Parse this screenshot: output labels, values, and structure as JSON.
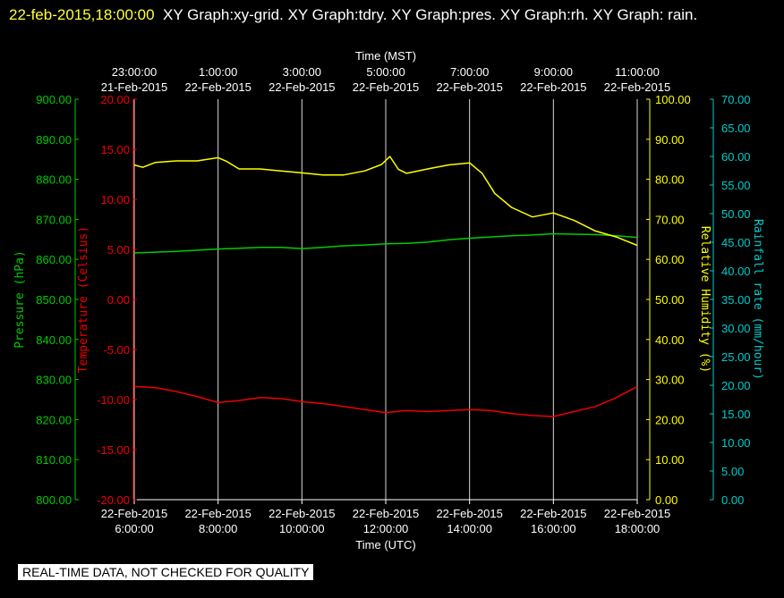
{
  "header": {
    "timestamp": "22-feb-2015,18:00:00",
    "title": "XY Graph:xy-grid.  XY Graph:tdry.  XY Graph:pres.  XY Graph:rh.  XY Graph: rain."
  },
  "footer_note": "REAL-TIME DATA, NOT CHECKED FOR QUALITY",
  "colors": {
    "background": "#000000",
    "grid": "#ffffff",
    "temperature": "#ee0000",
    "pressure": "#00cc00",
    "humidity": "#ffff00",
    "rain": "#00cccc",
    "axis_text": "#ffffff"
  },
  "chart_data": {
    "type": "line",
    "top_axis": {
      "label": "Time (MST)",
      "ticks": [
        {
          "time": "23:00:00",
          "date": "21-Feb-2015"
        },
        {
          "time": "1:00:00",
          "date": "22-Feb-2015"
        },
        {
          "time": "3:00:00",
          "date": "22-Feb-2015"
        },
        {
          "time": "5:00:00",
          "date": "22-Feb-2015"
        },
        {
          "time": "7:00:00",
          "date": "22-Feb-2015"
        },
        {
          "time": "9:00:00",
          "date": "22-Feb-2015"
        },
        {
          "time": "11:00:00",
          "date": "22-Feb-2015"
        }
      ]
    },
    "bottom_axis": {
      "label": "Time (UTC)",
      "range_hours": [
        6,
        18
      ],
      "ticks": [
        {
          "hour": 6,
          "date": "22-Feb-2015",
          "time": "6:00:00"
        },
        {
          "hour": 8,
          "date": "22-Feb-2015",
          "time": "8:00:00"
        },
        {
          "hour": 10,
          "date": "22-Feb-2015",
          "time": "10:00:00"
        },
        {
          "hour": 12,
          "date": "22-Feb-2015",
          "time": "12:00:00"
        },
        {
          "hour": 14,
          "date": "22-Feb-2015",
          "time": "14:00:00"
        },
        {
          "hour": 16,
          "date": "22-Feb-2015",
          "time": "16:00:00"
        },
        {
          "hour": 18,
          "date": "22-Feb-2015",
          "time": "18:00:00"
        }
      ]
    },
    "axes": {
      "pressure": {
        "label": "Pressure (hPa)",
        "unit": "hPa",
        "ylim": [
          800,
          900
        ],
        "ticks": [
          "800.00",
          "810.00",
          "820.00",
          "830.00",
          "840.00",
          "850.00",
          "860.00",
          "870.00",
          "880.00",
          "890.00",
          "900.00"
        ]
      },
      "temperature": {
        "label": "Temperature (Celsius)",
        "unit": "Celsius",
        "ylim": [
          -20,
          20
        ],
        "ticks": [
          "-20.00",
          "-15.00",
          "-10.00",
          "-5.00",
          "0.00",
          "5.00",
          "10.00",
          "15.00",
          "20.00"
        ]
      },
      "humidity": {
        "label": "Relative Humidity (%)",
        "unit": "%",
        "ylim": [
          0,
          100
        ],
        "ticks": [
          "0.00",
          "10.00",
          "20.00",
          "30.00",
          "40.00",
          "50.00",
          "60.00",
          "70.00",
          "80.00",
          "90.00",
          "100.00"
        ]
      },
      "rain": {
        "label": "Rainfall rate (mm/hour)",
        "unit": "mm/hour",
        "ylim": [
          0,
          70
        ],
        "ticks": [
          "0.00",
          "5.00",
          "10.00",
          "15.00",
          "20.00",
          "25.00",
          "30.00",
          "35.00",
          "40.00",
          "45.00",
          "50.00",
          "55.00",
          "60.00",
          "65.00",
          "70.00"
        ]
      }
    },
    "grid": true,
    "series": [
      {
        "name": "tdry",
        "axis": "temperature",
        "x": [
          6,
          6.5,
          7,
          7.5,
          8,
          8.5,
          9,
          9.5,
          10,
          10.5,
          11,
          11.5,
          12,
          12.5,
          13,
          13.5,
          14,
          14.5,
          15,
          15.5,
          16,
          16.5,
          17,
          17.5,
          18
        ],
        "y": [
          -8.7,
          -8.8,
          -9.2,
          -9.7,
          -10.3,
          -10.1,
          -9.8,
          -9.9,
          -10.2,
          -10.4,
          -10.7,
          -11.0,
          -11.3,
          -11.1,
          -11.2,
          -11.1,
          -11.0,
          -11.1,
          -11.4,
          -11.6,
          -11.7,
          -11.2,
          -10.7,
          -9.8,
          -8.7
        ]
      },
      {
        "name": "pres",
        "axis": "pressure",
        "x": [
          6,
          6.5,
          7,
          7.5,
          8,
          8.5,
          9,
          9.5,
          10,
          10.5,
          11,
          11.5,
          12,
          12.5,
          13,
          13.5,
          14,
          14.5,
          15,
          15.5,
          16,
          16.5,
          17,
          17.5,
          18
        ],
        "y": [
          861.6,
          861.8,
          862.0,
          862.3,
          862.6,
          862.8,
          863.0,
          863.0,
          862.7,
          863.0,
          863.4,
          863.6,
          863.9,
          864.0,
          864.3,
          864.9,
          865.3,
          865.6,
          865.9,
          866.1,
          866.4,
          866.3,
          866.2,
          865.9,
          865.5
        ]
      },
      {
        "name": "rh",
        "axis": "humidity",
        "x": [
          6,
          6.2,
          6.5,
          7,
          7.5,
          8,
          8.2,
          8.5,
          9,
          9.5,
          10,
          10.5,
          11,
          11.5,
          11.9,
          12.1,
          12.3,
          12.5,
          13,
          13.5,
          14,
          14.3,
          14.6,
          15,
          15.5,
          16,
          16.5,
          17,
          17.5,
          18
        ],
        "y": [
          83.6,
          83.0,
          84.2,
          84.6,
          84.6,
          85.4,
          84.5,
          82.6,
          82.6,
          82.1,
          81.6,
          81.1,
          81.1,
          82.1,
          83.7,
          85.7,
          82.5,
          81.5,
          82.6,
          83.6,
          84.1,
          81.5,
          76.5,
          73.0,
          70.6,
          71.6,
          69.7,
          67.1,
          65.6,
          63.5
        ]
      }
    ]
  }
}
